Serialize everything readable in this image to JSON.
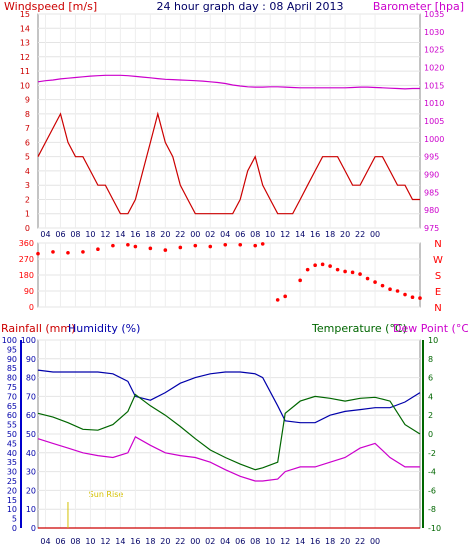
{
  "header": {
    "left": "Windspeed [m/s]",
    "center": "24 hour graph day : 08 April 2013",
    "right": "Barometer [hpa]"
  },
  "colors": {
    "wind": "#cc0000",
    "gust": "#0000cc",
    "pressure": "#cc00cc",
    "direction": "#ff0000",
    "humidity": "#0000aa",
    "temperature": "#006600",
    "dewpoint": "#cc00cc",
    "rain": "#cc0000",
    "sunrise": "#d4c000"
  },
  "chart_data": [
    {
      "type": "line",
      "title": "24 hour graph day : 08 April 2013",
      "ylabel": "Windspeed [m/s]",
      "y2label": "Barometer [hpa]",
      "ylim": [
        0,
        15
      ],
      "y2lim": [
        975,
        1035
      ],
      "yticks": [
        0,
        1,
        2,
        3,
        4,
        5,
        6,
        7,
        8,
        9,
        10,
        11,
        12,
        13,
        14,
        15
      ],
      "y2ticks": [
        975,
        980,
        985,
        990,
        995,
        1000,
        1005,
        1010,
        1015,
        1020,
        1025,
        1030,
        1035
      ],
      "x": [
        3,
        4,
        5,
        6,
        7,
        8,
        9,
        10,
        11,
        12,
        13,
        14,
        15,
        16,
        17,
        18,
        19,
        20,
        21,
        22,
        23,
        24,
        25,
        26,
        27,
        28,
        29,
        30,
        31,
        32,
        33,
        34,
        35,
        36,
        37,
        38,
        39,
        40,
        41,
        42,
        43,
        44,
        45,
        46,
        47,
        48,
        49,
        50,
        51,
        52,
        53,
        54
      ],
      "series": [
        {
          "name": "Windspeed [m/s]",
          "values": [
            5,
            6,
            7,
            8,
            6,
            5,
            5,
            4,
            3,
            3,
            2,
            1,
            1,
            2,
            4,
            6,
            8,
            6,
            5,
            3,
            2,
            1,
            1,
            1,
            1,
            1,
            1,
            2,
            4,
            5,
            3,
            2,
            1,
            1,
            1,
            2,
            3,
            4,
            5,
            5,
            5,
            4,
            3,
            3,
            4,
            5,
            5,
            4,
            3,
            3,
            2,
            2
          ]
        },
        {
          "name": "Barometer [hpa]",
          "values": [
            1016,
            1016.3,
            1016.5,
            1016.8,
            1017,
            1017.2,
            1017.4,
            1017.6,
            1017.7,
            1017.8,
            1017.8,
            1017.8,
            1017.7,
            1017.5,
            1017.3,
            1017.1,
            1016.9,
            1016.7,
            1016.6,
            1016.5,
            1016.4,
            1016.3,
            1016.2,
            1016,
            1015.8,
            1015.5,
            1015.1,
            1014.8,
            1014.6,
            1014.5,
            1014.5,
            1014.6,
            1014.6,
            1014.5,
            1014.4,
            1014.3,
            1014.3,
            1014.3,
            1014.3,
            1014.3,
            1014.3,
            1014.3,
            1014.4,
            1014.5,
            1014.5,
            1014.4,
            1014.3,
            1014.2,
            1014.1,
            1014,
            1014.1,
            1014.1
          ]
        }
      ],
      "xticks": [
        "04",
        "06",
        "08",
        "10",
        "12",
        "14",
        "16",
        "18",
        "20",
        "22",
        "00",
        "02",
        "04",
        "06",
        "08",
        "10",
        "12",
        "14",
        "16",
        "18",
        "20",
        "22",
        "00"
      ]
    },
    {
      "type": "scatter",
      "ylabel_right": [
        "N",
        "W",
        "S",
        "E",
        "N"
      ],
      "yticks": [
        0,
        90,
        180,
        270,
        360
      ],
      "ylim": [
        0,
        360
      ],
      "x": [
        3,
        5,
        7,
        9,
        11,
        13,
        15,
        16,
        18,
        20,
        22,
        24,
        26,
        28,
        30,
        32,
        33,
        35,
        36,
        38,
        39,
        40,
        41,
        42,
        43,
        44,
        45,
        46,
        47,
        48,
        49,
        50,
        51,
        52,
        53,
        54
      ],
      "values": [
        300,
        310,
        305,
        310,
        325,
        345,
        350,
        340,
        330,
        320,
        335,
        345,
        340,
        350,
        350,
        345,
        355,
        40,
        60,
        150,
        210,
        235,
        240,
        230,
        210,
        200,
        195,
        185,
        160,
        140,
        120,
        100,
        90,
        70,
        55,
        50
      ],
      "xticks": [
        "04",
        "06",
        "08",
        "10",
        "12",
        "14",
        "16",
        "18",
        "20",
        "22",
        "00",
        "02",
        "04",
        "06",
        "08",
        "10",
        "12",
        "14",
        "16",
        "18",
        "20",
        "22",
        "00"
      ]
    },
    {
      "type": "line",
      "legend": [
        "Rainfall (mm)",
        "Humidity (%)",
        "Temperature (°C)",
        "Dew Point (°C)"
      ],
      "annotation": "Sun Rise",
      "y_rain_ticks": [
        0,
        5,
        10,
        15,
        20,
        25,
        30,
        35,
        40,
        45,
        50,
        55,
        60,
        65,
        70,
        75,
        80,
        85,
        90,
        95,
        100
      ],
      "y_hum_ticks": [
        0,
        10,
        20,
        30,
        40,
        50,
        60,
        70,
        80,
        90,
        100
      ],
      "y_temp_ticks": [
        -10,
        -8,
        -6,
        -4,
        -2,
        0,
        2,
        4,
        6,
        8,
        10
      ],
      "ylim": [
        0,
        100
      ],
      "y2lim": [
        -10,
        10
      ],
      "x": [
        3,
        5,
        7,
        9,
        11,
        13,
        15,
        16,
        18,
        20,
        22,
        24,
        26,
        28,
        30,
        32,
        33,
        35,
        36,
        38,
        40,
        42,
        44,
        46,
        48,
        50,
        52,
        54
      ],
      "series": [
        {
          "name": "Humidity (%)",
          "values": [
            84,
            83,
            83,
            83,
            83,
            82,
            78,
            70,
            68,
            72,
            77,
            80,
            82,
            83,
            83,
            82,
            80,
            65,
            57,
            56,
            56,
            60,
            62,
            63,
            64,
            64,
            67,
            72
          ]
        },
        {
          "name": "Temperature (°C)",
          "values": [
            2.2,
            1.8,
            1.2,
            0.5,
            0.4,
            1,
            2.4,
            4.2,
            3,
            2,
            0.8,
            -0.5,
            -1.7,
            -2.5,
            -3.2,
            -3.8,
            -3.6,
            -3,
            2.2,
            3.5,
            4,
            3.8,
            3.5,
            3.8,
            3.9,
            3.5,
            1,
            0
          ]
        },
        {
          "name": "Dew Point (°C)",
          "values": [
            -0.5,
            -1,
            -1.5,
            -2,
            -2.3,
            -2.5,
            -2,
            -0.3,
            -1.2,
            -2,
            -2.3,
            -2.5,
            -3,
            -3.8,
            -4.5,
            -5,
            -5,
            -4.8,
            -4,
            -3.5,
            -3.5,
            -3,
            -2.5,
            -1.5,
            -1,
            -2.5,
            -3.5,
            -3.5
          ]
        },
        {
          "name": "Rainfall (mm)",
          "values": [
            0,
            0,
            0,
            0,
            0,
            0,
            0,
            0,
            0,
            0,
            0,
            0,
            0,
            0,
            0,
            0,
            0,
            0,
            0,
            0,
            0,
            0,
            0,
            0,
            0,
            0,
            0,
            0
          ]
        }
      ],
      "xticks": [
        "04",
        "06",
        "08",
        "10",
        "12",
        "14",
        "16",
        "18",
        "20",
        "22",
        "00",
        "02",
        "04",
        "06",
        "08",
        "10",
        "12",
        "14",
        "16",
        "18",
        "20",
        "22",
        "00"
      ]
    }
  ]
}
